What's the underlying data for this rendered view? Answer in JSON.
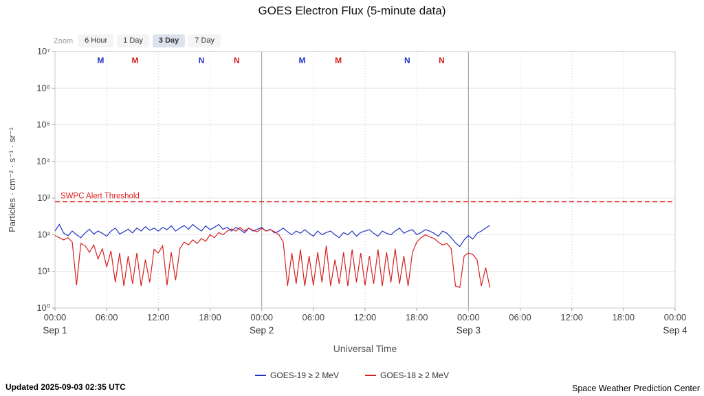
{
  "title": "GOES Electron Flux (5-minute data)",
  "zoom": {
    "label": "Zoom",
    "options": [
      "6 Hour",
      "1 Day",
      "3 Day",
      "7 Day"
    ],
    "selected": "3 Day"
  },
  "footer": {
    "updated": "Updated 2025-09-03 02:35 UTC",
    "credit": "Space Weather Prediction Center"
  },
  "colors": {
    "goes19_blue": "#2233c4",
    "goes18_red": "#d62020",
    "threshold_red": "#e02222"
  },
  "chart_data": {
    "type": "line",
    "title": "GOES Electron Flux (5-minute data)",
    "xlabel": "Universal Time",
    "ylabel": "Particles · cm⁻² · s⁻¹ · sr⁻¹",
    "x_axis": {
      "start_label": "Sep 1 00:00",
      "hours_span": 72,
      "ticks": [
        {
          "t": 0,
          "label": "00:00"
        },
        {
          "t": 6,
          "label": "06:00"
        },
        {
          "t": 12,
          "label": "12:00"
        },
        {
          "t": 18,
          "label": "18:00"
        },
        {
          "t": 24,
          "label": "00:00"
        },
        {
          "t": 30,
          "label": "06:00"
        },
        {
          "t": 36,
          "label": "12:00"
        },
        {
          "t": 42,
          "label": "18:00"
        },
        {
          "t": 48,
          "label": "00:00"
        },
        {
          "t": 54,
          "label": "06:00"
        },
        {
          "t": 60,
          "label": "12:00"
        },
        {
          "t": 66,
          "label": "18:00"
        },
        {
          "t": 72,
          "label": "00:00"
        }
      ],
      "day_labels": [
        {
          "t": 0,
          "label": "Sep 1"
        },
        {
          "t": 24,
          "label": "Sep 2"
        },
        {
          "t": 48,
          "label": "Sep 3"
        },
        {
          "t": 72,
          "label": "Sep 4"
        }
      ],
      "day_boundaries": [
        24,
        48
      ]
    },
    "y_axis": {
      "scale": "log10",
      "min_log": 0,
      "max_log": 7,
      "tick_labels": [
        "10⁰",
        "10¹",
        "10²",
        "10³",
        "10⁴",
        "10⁵",
        "10⁶",
        "10⁷"
      ]
    },
    "threshold": {
      "label": "SWPC Alert Threshold",
      "log10": 2.9,
      "color": "#e02222"
    },
    "top_markers": [
      {
        "t": 5.3,
        "label": "M",
        "color": "#2233c4"
      },
      {
        "t": 9.3,
        "label": "M",
        "color": "#d62020"
      },
      {
        "t": 17.0,
        "label": "N",
        "color": "#2233c4"
      },
      {
        "t": 21.1,
        "label": "N",
        "color": "#d62020"
      },
      {
        "t": 28.7,
        "label": "M",
        "color": "#2233c4"
      },
      {
        "t": 32.9,
        "label": "M",
        "color": "#d62020"
      },
      {
        "t": 40.9,
        "label": "N",
        "color": "#2233c4"
      },
      {
        "t": 44.9,
        "label": "N",
        "color": "#d62020"
      }
    ],
    "series": [
      {
        "name": "GOES-19 ≥ 2 MeV",
        "color": "#2233c4",
        "points_t_log10": [
          [
            0,
            2.1
          ],
          [
            0.5,
            2.28
          ],
          [
            1,
            2.05
          ],
          [
            1.5,
            1.97
          ],
          [
            2,
            2.1
          ],
          [
            2.5,
            2.0
          ],
          [
            3,
            1.92
          ],
          [
            3.5,
            2.05
          ],
          [
            4,
            2.15
          ],
          [
            4.5,
            2.02
          ],
          [
            5,
            2.1
          ],
          [
            5.5,
            2.04
          ],
          [
            6,
            1.96
          ],
          [
            6.5,
            2.1
          ],
          [
            7,
            2.18
          ],
          [
            7.5,
            2.02
          ],
          [
            8,
            2.08
          ],
          [
            8.5,
            2.15
          ],
          [
            9,
            2.05
          ],
          [
            9.5,
            2.18
          ],
          [
            10,
            2.1
          ],
          [
            10.5,
            2.22
          ],
          [
            11,
            2.12
          ],
          [
            11.5,
            2.18
          ],
          [
            12,
            2.1
          ],
          [
            12.5,
            2.2
          ],
          [
            13,
            2.14
          ],
          [
            13.5,
            2.24
          ],
          [
            14,
            2.1
          ],
          [
            14.5,
            2.18
          ],
          [
            15,
            2.25
          ],
          [
            15.5,
            2.15
          ],
          [
            16,
            2.28
          ],
          [
            16.5,
            2.18
          ],
          [
            17,
            2.1
          ],
          [
            17.5,
            2.24
          ],
          [
            18,
            2.14
          ],
          [
            18.5,
            2.2
          ],
          [
            19,
            2.28
          ],
          [
            19.5,
            2.15
          ],
          [
            20,
            2.2
          ],
          [
            20.5,
            2.1
          ],
          [
            21,
            2.2
          ],
          [
            21.5,
            2.14
          ],
          [
            22,
            2.05
          ],
          [
            22.5,
            2.18
          ],
          [
            23,
            2.1
          ],
          [
            23.5,
            2.15
          ],
          [
            24,
            2.2
          ],
          [
            24.5,
            2.1
          ],
          [
            25,
            2.15
          ],
          [
            25.5,
            2.05
          ],
          [
            26,
            2.1
          ],
          [
            26.5,
            2.18
          ],
          [
            27,
            2.08
          ],
          [
            27.5,
            2.0
          ],
          [
            28,
            2.1
          ],
          [
            28.5,
            2.04
          ],
          [
            29,
            2.14
          ],
          [
            29.5,
            2.04
          ],
          [
            30,
            1.96
          ],
          [
            30.5,
            2.1
          ],
          [
            31,
            2.0
          ],
          [
            31.5,
            2.06
          ],
          [
            32,
            2.1
          ],
          [
            32.5,
            2.0
          ],
          [
            33,
            1.92
          ],
          [
            33.5,
            2.06
          ],
          [
            34,
            2.0
          ],
          [
            34.5,
            2.1
          ],
          [
            35,
            1.96
          ],
          [
            35.5,
            2.06
          ],
          [
            36,
            2.1
          ],
          [
            36.5,
            2.14
          ],
          [
            37,
            2.04
          ],
          [
            37.5,
            1.96
          ],
          [
            38,
            2.1
          ],
          [
            38.5,
            2.04
          ],
          [
            39,
            2.0
          ],
          [
            39.5,
            2.1
          ],
          [
            40,
            2.18
          ],
          [
            40.5,
            2.04
          ],
          [
            41,
            2.1
          ],
          [
            41.5,
            2.14
          ],
          [
            42,
            2.0
          ],
          [
            42.5,
            2.06
          ],
          [
            43,
            2.14
          ],
          [
            43.5,
            2.1
          ],
          [
            44,
            2.04
          ],
          [
            44.5,
            1.96
          ],
          [
            45,
            2.1
          ],
          [
            45.5,
            2.04
          ],
          [
            46,
            1.92
          ],
          [
            46.5,
            1.78
          ],
          [
            47,
            1.68
          ],
          [
            47.5,
            1.86
          ],
          [
            48,
            1.98
          ],
          [
            48.5,
            1.88
          ],
          [
            49,
            2.04
          ],
          [
            49.5,
            2.1
          ],
          [
            50,
            2.18
          ],
          [
            50.5,
            2.26
          ]
        ]
      },
      {
        "name": "GOES-18 ≥ 2 MeV",
        "color": "#d62020",
        "points_t_log10": [
          [
            0,
            1.98
          ],
          [
            0.5,
            1.92
          ],
          [
            1,
            1.86
          ],
          [
            1.5,
            1.92
          ],
          [
            2,
            1.8
          ],
          [
            2.5,
            0.62
          ],
          [
            3,
            1.76
          ],
          [
            3.5,
            1.7
          ],
          [
            4,
            1.52
          ],
          [
            4.5,
            1.72
          ],
          [
            5,
            1.34
          ],
          [
            5.5,
            1.62
          ],
          [
            6,
            1.12
          ],
          [
            6.5,
            1.56
          ],
          [
            7,
            0.7
          ],
          [
            7.5,
            1.5
          ],
          [
            8,
            0.6
          ],
          [
            8.5,
            1.42
          ],
          [
            9,
            0.66
          ],
          [
            9.5,
            1.5
          ],
          [
            10,
            0.6
          ],
          [
            10.5,
            1.32
          ],
          [
            11,
            0.7
          ],
          [
            11.5,
            1.6
          ],
          [
            12,
            1.5
          ],
          [
            12.5,
            1.7
          ],
          [
            13,
            0.62
          ],
          [
            13.5,
            1.52
          ],
          [
            14,
            0.76
          ],
          [
            14.5,
            1.62
          ],
          [
            15,
            1.8
          ],
          [
            15.5,
            1.72
          ],
          [
            16,
            1.86
          ],
          [
            16.5,
            1.76
          ],
          [
            17,
            1.9
          ],
          [
            17.5,
            1.82
          ],
          [
            18,
            2.0
          ],
          [
            18.5,
            1.92
          ],
          [
            19,
            2.06
          ],
          [
            19.5,
            2.0
          ],
          [
            20,
            2.1
          ],
          [
            20.5,
            2.16
          ],
          [
            21,
            2.1
          ],
          [
            21.5,
            2.2
          ],
          [
            22,
            2.1
          ],
          [
            22.5,
            2.18
          ],
          [
            23,
            2.12
          ],
          [
            23.5,
            2.08
          ],
          [
            24,
            2.18
          ],
          [
            24.5,
            2.1
          ],
          [
            25,
            2.14
          ],
          [
            25.5,
            2.08
          ],
          [
            26,
            2.0
          ],
          [
            26.5,
            1.8
          ],
          [
            27,
            0.6
          ],
          [
            27.5,
            1.5
          ],
          [
            28,
            0.66
          ],
          [
            28.5,
            1.6
          ],
          [
            29,
            0.6
          ],
          [
            29.5,
            1.42
          ],
          [
            30,
            0.62
          ],
          [
            30.5,
            1.52
          ],
          [
            31,
            0.7
          ],
          [
            31.5,
            1.7
          ],
          [
            32,
            0.6
          ],
          [
            32.5,
            1.32
          ],
          [
            33,
            0.66
          ],
          [
            33.5,
            1.52
          ],
          [
            34,
            0.6
          ],
          [
            34.5,
            1.6
          ],
          [
            35,
            0.7
          ],
          [
            35.5,
            1.5
          ],
          [
            36,
            0.62
          ],
          [
            36.5,
            1.42
          ],
          [
            37,
            0.66
          ],
          [
            37.5,
            1.6
          ],
          [
            38,
            0.6
          ],
          [
            38.5,
            1.52
          ],
          [
            39,
            0.7
          ],
          [
            39.5,
            1.62
          ],
          [
            40,
            0.66
          ],
          [
            40.5,
            1.42
          ],
          [
            41,
            0.6
          ],
          [
            41.5,
            1.52
          ],
          [
            42,
            1.8
          ],
          [
            42.5,
            1.92
          ],
          [
            43,
            2.0
          ],
          [
            43.5,
            1.94
          ],
          [
            44,
            1.9
          ],
          [
            44.5,
            1.8
          ],
          [
            45,
            1.72
          ],
          [
            45.5,
            1.76
          ],
          [
            46,
            1.62
          ],
          [
            46.5,
            0.6
          ],
          [
            47,
            0.56
          ],
          [
            47.5,
            1.42
          ],
          [
            48,
            1.5
          ],
          [
            48.5,
            1.46
          ],
          [
            49,
            1.32
          ],
          [
            49.5,
            0.6
          ],
          [
            50,
            1.1
          ],
          [
            50.5,
            0.56
          ]
        ]
      }
    ]
  }
}
